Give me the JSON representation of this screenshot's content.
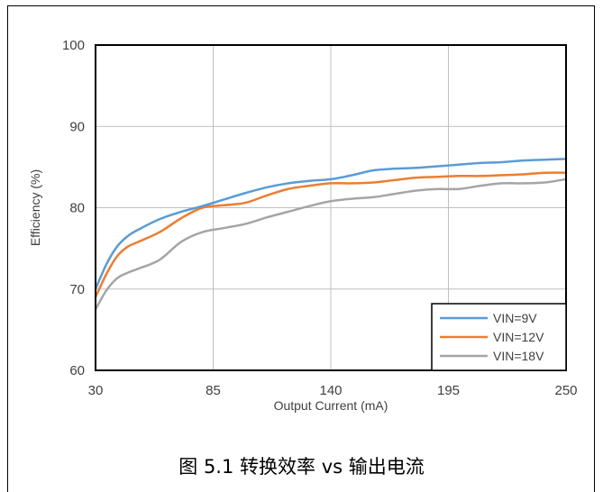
{
  "chart_data": {
    "type": "line",
    "title": "",
    "xlabel": "Output Current (mA)",
    "ylabel": "Efficiency (%)",
    "xlim": [
      30,
      250
    ],
    "ylim": [
      60,
      100
    ],
    "x_ticks": [
      "30",
      "85",
      "140",
      "195",
      "250"
    ],
    "y_ticks": [
      "60",
      "70",
      "80",
      "90",
      "100"
    ],
    "grid": true,
    "legend_position": "bottom-right",
    "series": [
      {
        "name": "VIN=9V",
        "color": "#5b9bd5",
        "x": [
          30,
          35,
          40,
          45,
          50,
          60,
          70,
          80,
          90,
          100,
          110,
          120,
          130,
          140,
          150,
          160,
          170,
          180,
          190,
          200,
          210,
          220,
          230,
          240,
          250
        ],
        "y": [
          70.0,
          73.0,
          75.2,
          76.5,
          77.3,
          78.6,
          79.5,
          80.2,
          81.0,
          81.8,
          82.5,
          83.0,
          83.3,
          83.5,
          84.0,
          84.6,
          84.8,
          84.9,
          85.1,
          85.3,
          85.5,
          85.6,
          85.8,
          85.9,
          86.0
        ]
      },
      {
        "name": "VIN=12V",
        "color": "#ed7d31",
        "x": [
          30,
          35,
          40,
          45,
          50,
          60,
          70,
          80,
          90,
          100,
          110,
          120,
          130,
          140,
          150,
          160,
          170,
          180,
          190,
          200,
          210,
          220,
          230,
          240,
          250
        ],
        "y": [
          69.0,
          71.8,
          74.0,
          75.2,
          75.8,
          77.0,
          78.7,
          80.0,
          80.3,
          80.6,
          81.5,
          82.3,
          82.7,
          83.0,
          83.0,
          83.1,
          83.4,
          83.7,
          83.8,
          83.9,
          83.9,
          84.0,
          84.1,
          84.3,
          84.3
        ]
      },
      {
        "name": "VIN=18V",
        "color": "#a5a5a5",
        "x": [
          30,
          35,
          40,
          45,
          50,
          60,
          70,
          80,
          90,
          100,
          110,
          120,
          130,
          140,
          150,
          160,
          170,
          180,
          190,
          200,
          210,
          220,
          230,
          240,
          250
        ],
        "y": [
          67.5,
          69.8,
          71.3,
          72.0,
          72.5,
          73.6,
          75.8,
          77.0,
          77.5,
          78.0,
          78.8,
          79.5,
          80.2,
          80.8,
          81.1,
          81.3,
          81.7,
          82.1,
          82.3,
          82.3,
          82.7,
          83.0,
          83.0,
          83.1,
          83.5
        ]
      }
    ]
  },
  "caption": "图 5.1 转换效率 vs 输出电流"
}
